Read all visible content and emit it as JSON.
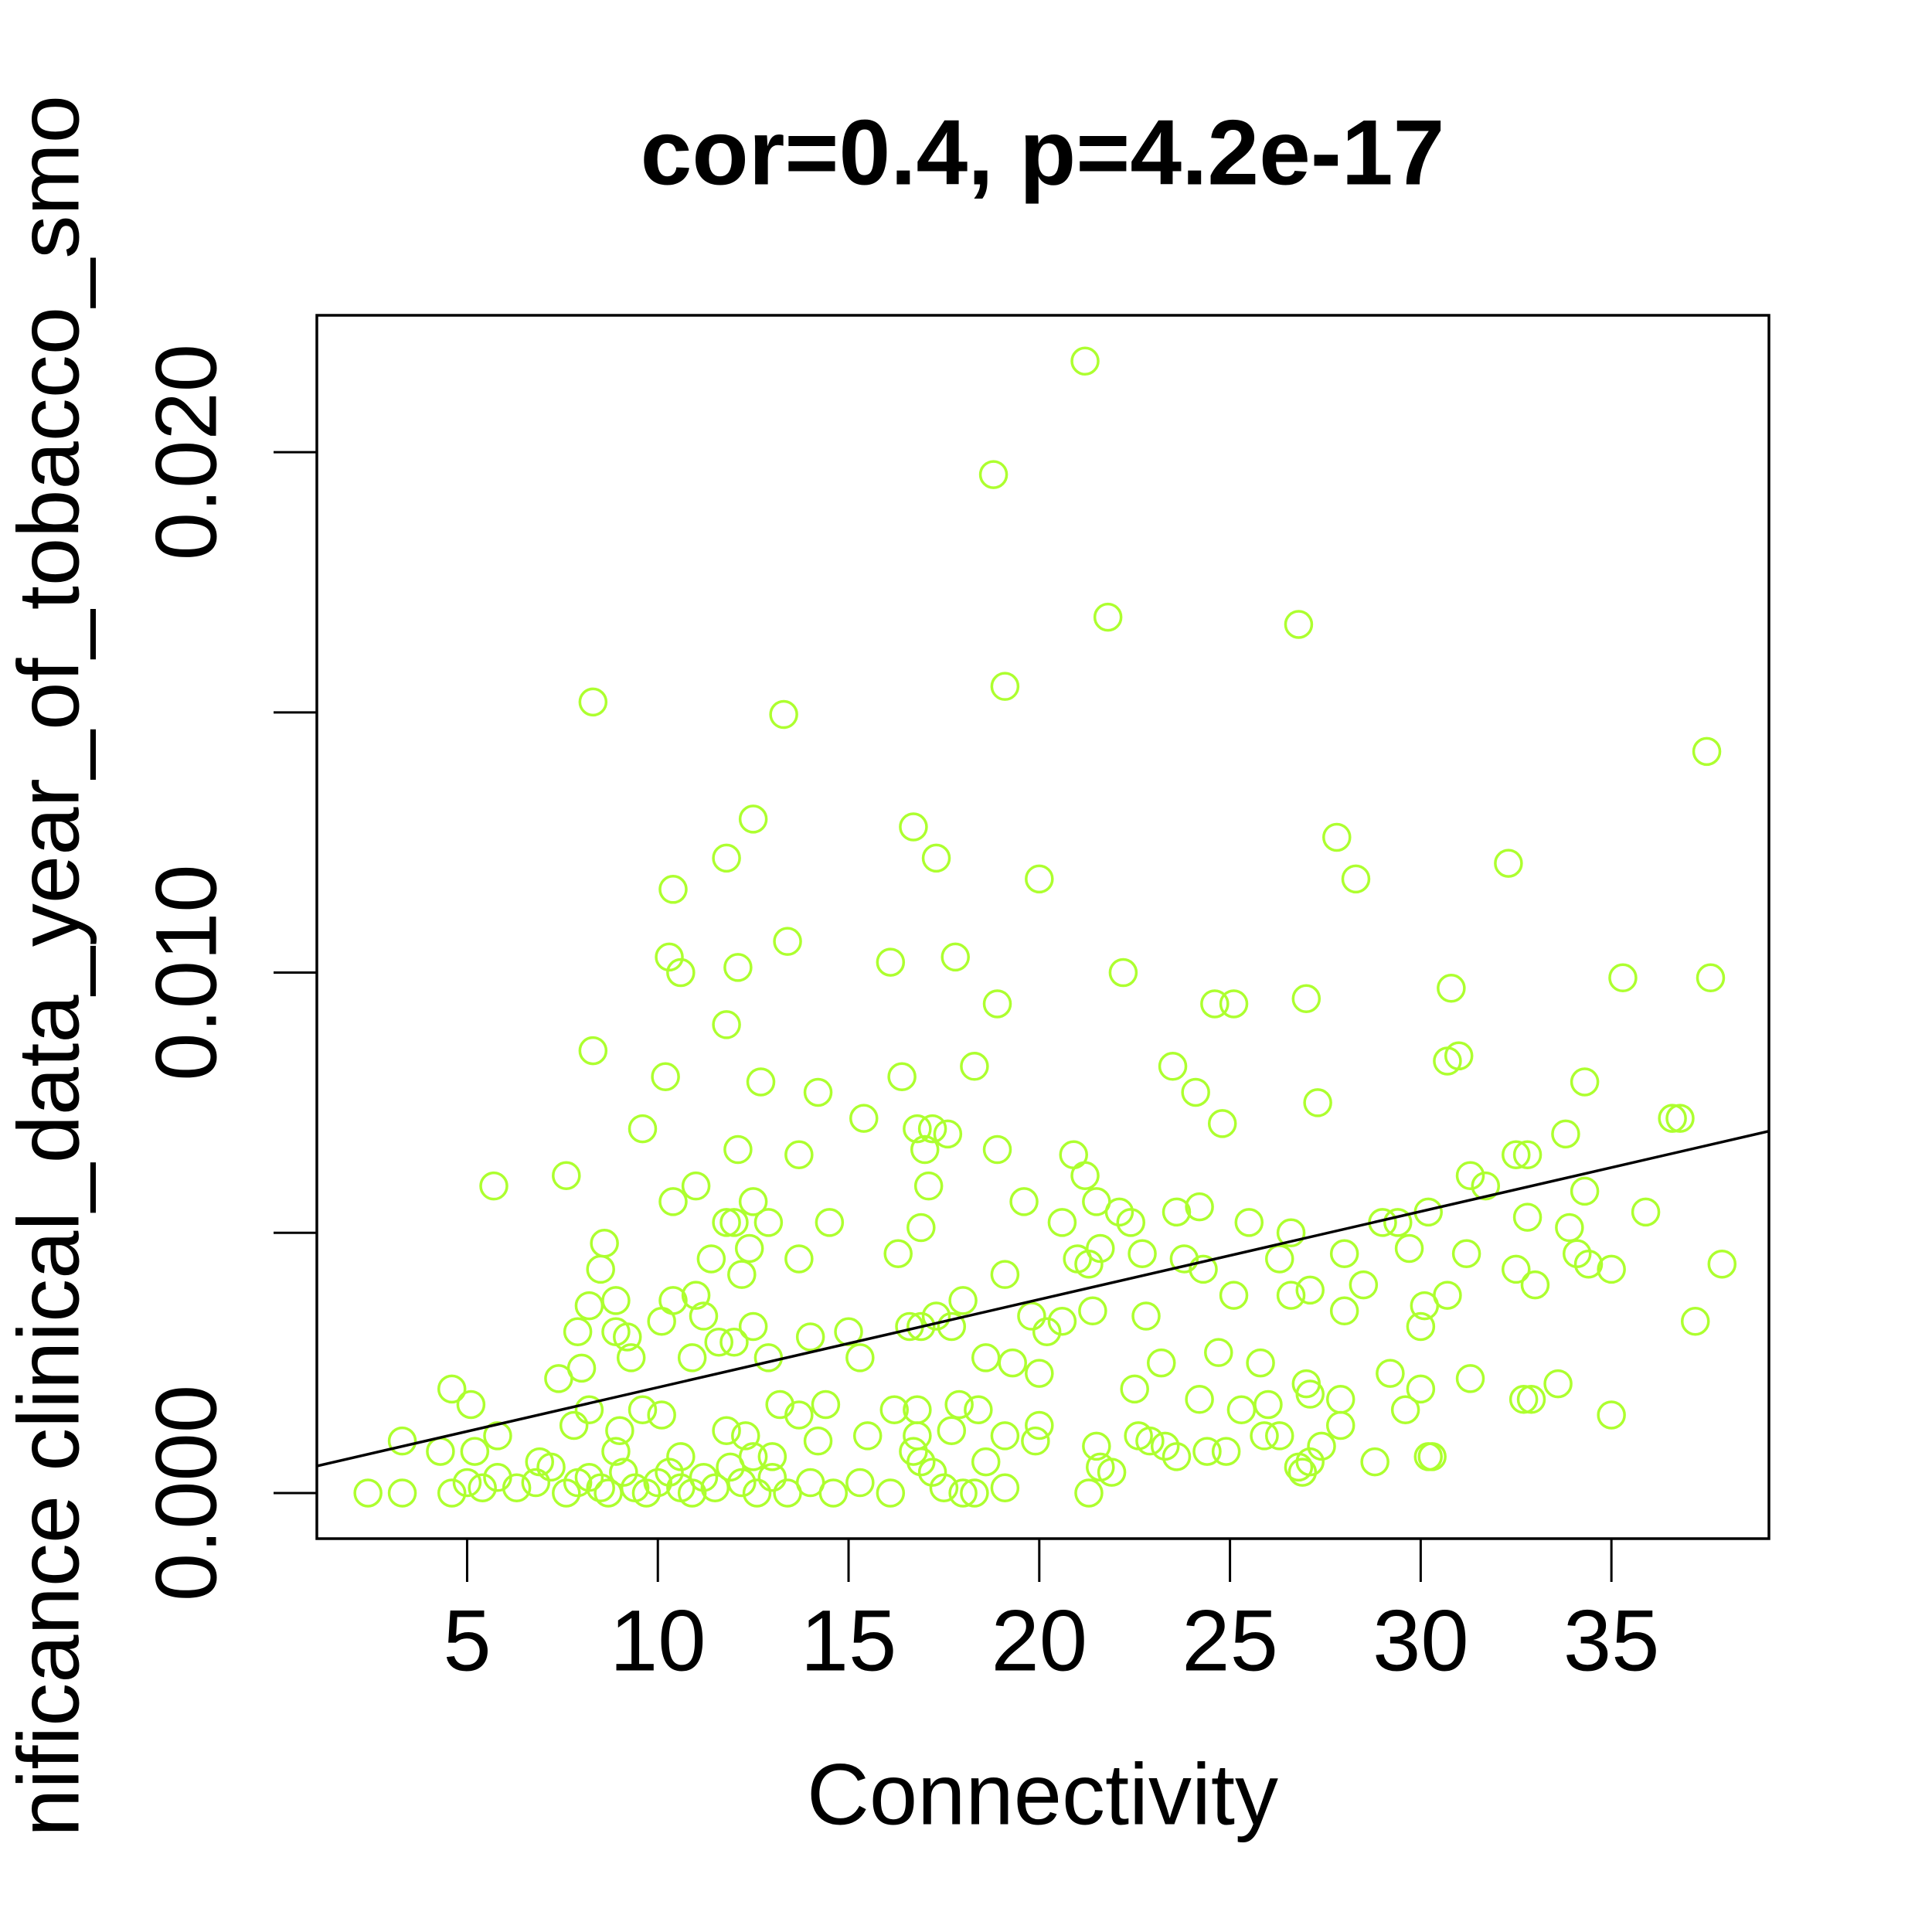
{
  "chart_data": {
    "type": "scatter",
    "title": "cor=0.4, p=4.2e-17",
    "x_label": "Connectivity",
    "y_label": "nificance clinical_data_year_of_tobacco_smo",
    "color": "#adff2f",
    "line_color": "#000000",
    "fit": {
      "intercept": 0.00034,
      "slope": 0.000169
    },
    "xlim": [
      1.06,
      39.13
    ],
    "ylim": [
      -0.000876,
      0.02263
    ],
    "xticks": [
      5,
      10,
      15,
      20,
      25,
      30,
      35
    ],
    "yticks": [
      {
        "value": 0,
        "label": "0.000"
      },
      {
        "value": 0.01,
        "label": "0.010"
      },
      {
        "value": 0.02,
        "label": "0.020"
      }
    ],
    "yticks_unlabeled": [
      0.005,
      0.015
    ],
    "x": [
      21.2,
      18.8,
      21.8,
      26.8,
      19.1,
      8.3,
      13.3,
      37.5,
      12.5,
      16.7,
      11.8,
      17.3,
      27.8,
      32.3,
      20.0,
      28.3,
      10.4,
      13.4,
      10.3,
      16.1,
      17.8,
      12.1,
      10.6,
      22.2,
      35.3,
      37.6,
      30.8,
      24.6,
      25.1,
      27.0,
      18.9,
      11.8,
      8.3,
      30.7,
      31.0,
      18.3,
      10.2,
      16.4,
      23.5,
      12.7,
      34.3,
      14.2,
      24.1,
      27.3,
      15.4,
      24.8,
      36.6,
      36.8,
      9.6,
      16.8,
      17.2,
      17.6,
      17.0,
      18.9,
      12.1,
      13.7,
      20.9,
      32.5,
      32.8,
      33.8,
      7.6,
      5.7,
      17.1,
      21.2,
      31.3,
      31.7,
      11.0,
      19.6,
      21.5,
      10.4,
      12.5,
      24.2,
      23.6,
      34.3,
      35.9,
      14.5,
      12.0,
      12.9,
      11.8,
      20.6,
      22.1,
      22.4,
      25.5,
      26.6,
      29.0,
      29.4,
      30.2,
      32.8,
      33.9,
      16.9,
      8.6,
      12.4,
      11.4,
      13.7,
      16.3,
      21.0,
      21.6,
      22.7,
      23.8,
      26.3,
      28.0,
      29.7,
      31.2,
      34.1,
      34.4,
      37.9,
      8.5,
      12.2,
      19.1,
      21.3,
      24.3,
      32.5,
      35.0,
      28.5,
      33.0,
      8.9,
      10.4,
      11.0,
      18.0,
      25.1,
      26.6,
      27.1,
      30.7,
      30.1,
      8.2,
      10.1,
      11.2,
      16.9,
      17.3,
      19.8,
      20.6,
      21.4,
      22.8,
      28.0,
      37.2,
      30.0,
      7.9,
      8.9,
      9.2,
      12.5,
      14.0,
      15.0,
      11.6,
      12.0,
      16.6,
      17.7,
      20.2,
      9.3,
      10.9,
      15.3,
      12.9,
      18.6,
      19.3,
      20.0,
      24.7,
      25.8,
      23.2,
      29.2,
      33.6,
      31.3,
      8.0,
      7.4,
      4.6,
      5.1,
      8.2,
      9.6,
      10.1,
      13.2,
      13.7,
      14.4,
      16.2,
      16.8,
      17.9,
      18.4,
      22.5,
      24.2,
      25.3,
      26.0,
      27.0,
      27.1,
      27.9,
      29.6,
      30.0,
      32.7,
      35.0,
      32.9,
      3.3,
      5.8,
      7.8,
      9.0,
      11.8,
      12.3,
      14.2,
      15.5,
      16.8,
      17.7,
      19.1,
      20.0,
      21.5,
      22.6,
      26.3,
      27.9,
      25.9,
      4.3,
      5.2,
      6.9,
      8.9,
      10.6,
      12.5,
      13.0,
      16.7,
      19.9,
      23.3,
      24.4,
      24.9,
      27.4,
      28.8,
      30.3,
      2.4,
      3.3,
      4.6,
      5.0,
      5.4,
      5.8,
      6.3,
      6.8,
      7.2,
      7.6,
      7.9,
      8.2,
      8.5,
      8.7,
      9.1,
      9.4,
      9.7,
      10.0,
      10.3,
      10.6,
      10.9,
      11.2,
      11.5,
      11.9,
      12.2,
      12.6,
      13.0,
      13.4,
      14.0,
      14.6,
      15.3,
      16.1,
      16.9,
      17.2,
      17.5,
      18.0,
      18.3,
      18.6,
      19.1,
      21.3,
      21.6,
      21.9,
      22.9,
      23.6,
      26.9,
      27.1,
      30.2,
      26.8
    ],
    "y": [
      0.02175,
      0.01957,
      0.01683,
      0.01669,
      0.0155,
      0.0152,
      0.01496,
      0.01425,
      0.01295,
      0.0128,
      0.0122,
      0.0122,
      0.0126,
      0.0121,
      0.0118,
      0.0118,
      0.0116,
      0.0106,
      0.0103,
      0.0102,
      0.0103,
      0.0101,
      0.01,
      0.01,
      0.0099,
      0.0099,
      0.0097,
      0.0094,
      0.0094,
      0.0095,
      0.0094,
      0.009,
      0.0085,
      0.0083,
      0.0084,
      0.0082,
      0.008,
      0.008,
      0.0082,
      0.0079,
      0.0079,
      0.0077,
      0.0077,
      0.0075,
      0.0072,
      0.0071,
      0.0072,
      0.0072,
      0.007,
      0.007,
      0.007,
      0.0069,
      0.0066,
      0.0066,
      0.0066,
      0.0065,
      0.0065,
      0.0065,
      0.0065,
      0.0069,
      0.0061,
      0.0059,
      0.0059,
      0.0061,
      0.0061,
      0.0059,
      0.0059,
      0.0056,
      0.0056,
      0.0056,
      0.0056,
      0.0055,
      0.0054,
      0.0058,
      0.0054,
      0.0052,
      0.0052,
      0.0052,
      0.0052,
      0.0052,
      0.0054,
      0.0052,
      0.0052,
      0.005,
      0.0052,
      0.0052,
      0.0054,
      0.0053,
      0.0051,
      0.0051,
      0.0048,
      0.0047,
      0.0045,
      0.0045,
      0.0046,
      0.0045,
      0.0047,
      0.0046,
      0.0045,
      0.0045,
      0.0046,
      0.0047,
      0.0046,
      0.0046,
      0.0044,
      0.0044,
      0.0043,
      0.0042,
      0.0042,
      0.0044,
      0.0043,
      0.0043,
      0.0043,
      0.004,
      0.004,
      0.0037,
      0.0037,
      0.0038,
      0.0037,
      0.0038,
      0.0038,
      0.0039,
      0.0038,
      0.0036,
      0.0036,
      0.0033,
      0.0034,
      0.0032,
      0.0034,
      0.0034,
      0.0033,
      0.0035,
      0.0034,
      0.0035,
      0.0033,
      0.0032,
      0.0031,
      0.0031,
      0.003,
      0.0032,
      0.003,
      0.0031,
      0.0029,
      0.0029,
      0.0032,
      0.0032,
      0.0031,
      0.0026,
      0.0026,
      0.0026,
      0.0026,
      0.0026,
      0.0025,
      0.0023,
      0.0027,
      0.0025,
      0.0025,
      0.0023,
      0.0021,
      0.0022,
      0.0024,
      0.0022,
      0.002,
      0.0017,
      0.0016,
      0.0016,
      0.0015,
      0.0017,
      0.0015,
      0.0017,
      0.0016,
      0.0016,
      0.0017,
      0.0016,
      0.002,
      0.0018,
      0.0016,
      0.0017,
      0.0021,
      0.0019,
      0.0018,
      0.0016,
      0.002,
      0.0018,
      0.0015,
      0.0018,
      0.001,
      0.0011,
      0.0013,
      0.0012,
      0.0012,
      0.0011,
      0.001,
      0.0011,
      0.0011,
      0.0012,
      0.0011,
      0.0013,
      0.0009,
      0.0011,
      0.0011,
      0.0013,
      0.0011,
      0.0008,
      0.0008,
      0.0006,
      0.0008,
      0.0007,
      0.0007,
      0.0007,
      0.0008,
      0.001,
      0.0009,
      0.0008,
      0.0008,
      0.0009,
      0.0006,
      0.0007,
      0,
      0,
      0,
      0.0002,
      0.0001,
      0.0003,
      0.0001,
      0.0002,
      0.0005,
      0,
      0.0002,
      0.0003,
      0.0001,
      0,
      0.0004,
      0.0001,
      0,
      0.0002,
      0.0004,
      0.0001,
      0,
      0.0003,
      0.0001,
      0.0005,
      0.0002,
      0,
      0.0003,
      0,
      0.0002,
      0,
      0.0002,
      0,
      0.0006,
      0.0004,
      0.0001,
      0,
      0,
      0.0006,
      0.0001,
      0,
      0.0005,
      0.0004,
      0.001,
      0.0007,
      0.0004,
      0.0006,
      0.0007,
      0.0005
    ]
  }
}
